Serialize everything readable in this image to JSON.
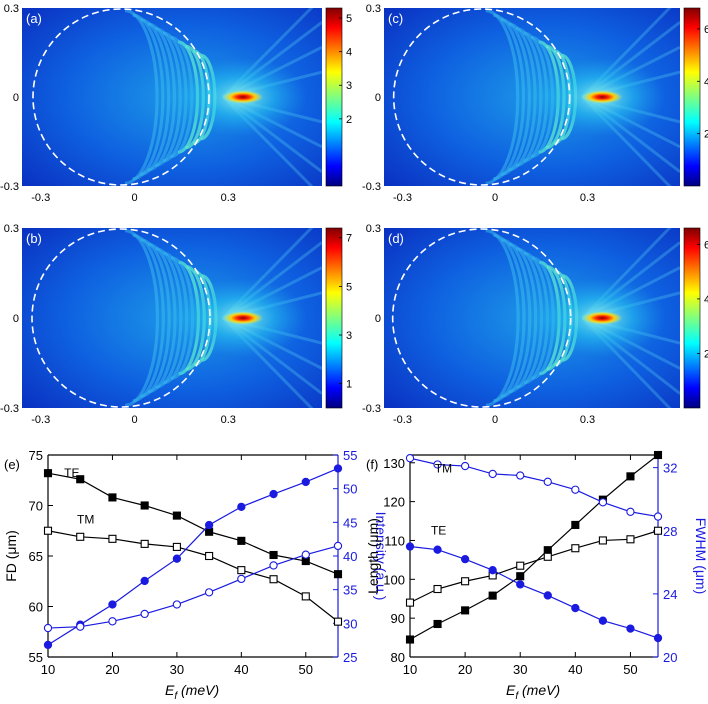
{
  "chart_data": [
    {
      "type": "heatmap",
      "panel_label": "(a)",
      "x_ticks": [
        "-0.3",
        "0",
        "0.3"
      ],
      "y_ticks": [
        "0.3",
        "0",
        "-0.3"
      ],
      "colorbar_ticks": [
        "5",
        "4",
        "3",
        "2"
      ],
      "colorbar_max": 5.3,
      "colorbar_tick_values": [
        5,
        4,
        3,
        2
      ]
    },
    {
      "type": "heatmap",
      "panel_label": "(c)",
      "x_ticks": [
        "-0.3",
        "0",
        "0.3"
      ],
      "y_ticks": [
        "0.3",
        "0",
        "-0.3"
      ],
      "colorbar_ticks": [
        "6",
        "4",
        "2"
      ],
      "colorbar_max": 6.8,
      "colorbar_tick_values": [
        6,
        4,
        2
      ]
    },
    {
      "type": "heatmap",
      "panel_label": "(b)",
      "x_ticks": [
        "-0.3",
        "0",
        "0.3"
      ],
      "y_ticks": [
        "0.3",
        "0",
        "-0.3"
      ],
      "colorbar_ticks": [
        "7",
        "5",
        "3",
        "1"
      ],
      "colorbar_max": 7.4,
      "colorbar_tick_values": [
        7,
        5,
        3,
        1
      ]
    },
    {
      "type": "heatmap",
      "panel_label": "(d)",
      "x_ticks": [
        "-0.3",
        "0",
        "0.3"
      ],
      "y_ticks": [
        "0.3",
        "0",
        "-0.3"
      ],
      "colorbar_ticks": [
        "6",
        "4",
        "2"
      ],
      "colorbar_max": 6.6,
      "colorbar_tick_values": [
        6,
        4,
        2
      ]
    },
    {
      "type": "line",
      "panel_label": "(e)",
      "x": [
        10,
        15,
        20,
        25,
        30,
        35,
        40,
        45,
        50,
        55
      ],
      "xlabel_main": "E",
      "xlabel_sub": "f",
      "xlabel_unit": " (meV)",
      "ylabel": "FD (μm)",
      "ylabel_right": "Intensity (a.u.)",
      "xlim": [
        10,
        55
      ],
      "ylim": [
        55,
        75
      ],
      "ylim_right": [
        25,
        55
      ],
      "x_ticks": [
        10,
        20,
        30,
        40,
        50
      ],
      "y_ticks": [
        55,
        60,
        65,
        70,
        75
      ],
      "y_ticks_right": [
        25,
        30,
        35,
        40,
        45,
        50,
        55
      ],
      "series": [
        {
          "name": "TE",
          "axis": "left",
          "marker": "square-filled",
          "color": "#000000",
          "values": [
            73.2,
            72.6,
            70.8,
            70.0,
            69.0,
            67.4,
            66.5,
            65.1,
            64.5,
            63.2
          ]
        },
        {
          "name": "TM",
          "axis": "left",
          "marker": "square-open",
          "color": "#000000",
          "values": [
            67.5,
            66.9,
            66.7,
            66.2,
            65.9,
            65.0,
            63.6,
            62.7,
            61.0,
            58.5
          ]
        },
        {
          "name": "TE intensity",
          "axis": "right",
          "marker": "circle-filled",
          "color": "#1a1ae0",
          "values": [
            26.8,
            29.8,
            32.8,
            36.3,
            39.6,
            44.6,
            47.3,
            49.2,
            51.0,
            53.0
          ]
        },
        {
          "name": "TM intensity",
          "axis": "right",
          "marker": "circle-open",
          "color": "#1a1ae0",
          "values": [
            29.3,
            29.5,
            30.3,
            31.4,
            32.8,
            34.6,
            36.6,
            38.6,
            40.2,
            41.5
          ]
        }
      ],
      "annotations": [
        {
          "text": "TE",
          "x": 12.5,
          "y": 72.8
        },
        {
          "text": "TM",
          "x": 14.5,
          "y": 68.2
        }
      ]
    },
    {
      "type": "line",
      "panel_label": "(f)",
      "x": [
        10,
        15,
        20,
        25,
        30,
        35,
        40,
        45,
        50,
        55
      ],
      "xlabel_main": "E",
      "xlabel_sub": "f",
      "xlabel_unit": " (meV)",
      "ylabel": "Length (μm)",
      "ylabel_right": "FWHM (μm)",
      "xlim": [
        10,
        55
      ],
      "ylim": [
        80,
        132
      ],
      "ylim_right": [
        20,
        32.8
      ],
      "x_ticks": [
        10,
        20,
        30,
        40,
        50
      ],
      "y_ticks": [
        80,
        90,
        100,
        110,
        120,
        130
      ],
      "y_ticks_right": [
        20,
        24,
        28,
        32
      ],
      "series": [
        {
          "name": "TE length",
          "axis": "left",
          "marker": "square-filled",
          "color": "#000000",
          "values": [
            84.5,
            88.5,
            92.0,
            95.8,
            100.8,
            107.5,
            114.0,
            120.5,
            126.5,
            132.0
          ]
        },
        {
          "name": "TM length",
          "axis": "left",
          "marker": "square-open",
          "color": "#000000",
          "values": [
            94.0,
            97.5,
            99.5,
            101.0,
            103.5,
            105.8,
            108.0,
            110.0,
            110.3,
            112.5
          ]
        },
        {
          "name": "TM FWHM",
          "axis": "right",
          "marker": "circle-open",
          "color": "#1a1ae0",
          "values": [
            32.6,
            32.2,
            32.1,
            31.6,
            31.5,
            31.1,
            30.6,
            29.8,
            29.2,
            28.9
          ]
        },
        {
          "name": "TE FWHM",
          "axis": "right",
          "marker": "circle-filled",
          "color": "#1a1ae0",
          "values": [
            27.0,
            26.8,
            26.2,
            25.5,
            24.6,
            23.9,
            23.1,
            22.3,
            21.8,
            21.2
          ]
        }
      ],
      "annotations": [
        {
          "text": "TM",
          "x": 14.5,
          "y": 127.5
        },
        {
          "text": "TE",
          "x": 13.8,
          "y": 111.5
        }
      ]
    }
  ]
}
